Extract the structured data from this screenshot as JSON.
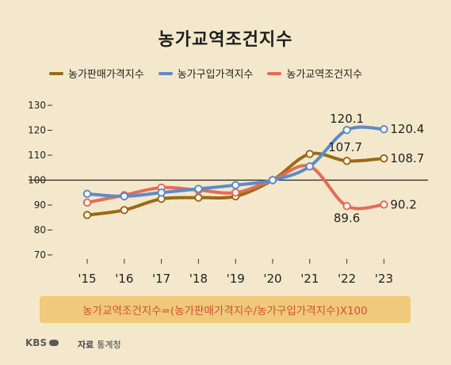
{
  "chart_data": {
    "type": "line",
    "title": "농가교역조건지수",
    "categories": [
      "'15",
      "'16",
      "'17",
      "'18",
      "'19",
      "'20",
      "'21",
      "'22",
      "'23"
    ],
    "ylim": [
      70,
      130
    ],
    "yticks": [
      70,
      80,
      90,
      100,
      110,
      120,
      130
    ],
    "ytick_labels": [
      "70",
      "80",
      "90",
      "100",
      "110",
      "120",
      "130"
    ],
    "reference_line": 100,
    "legend_position": "top",
    "series": [
      {
        "name": "농가판매가격지수",
        "color": "#9a6a16",
        "values": [
          86,
          88,
          92.5,
          93,
          93.5,
          100,
          110.5,
          107.7,
          108.7
        ]
      },
      {
        "name": "농가구입가격지수",
        "color": "#5b8cc9",
        "values": [
          94.5,
          93.5,
          95,
          96.5,
          98,
          100,
          105.5,
          120.1,
          120.4
        ]
      },
      {
        "name": "농가교역조건지수",
        "color": "#e36d57",
        "values": [
          91,
          94,
          97,
          96,
          95,
          100,
          105.5,
          89.6,
          90.2
        ]
      }
    ],
    "annotations": [
      {
        "text": "120.1",
        "series": 1,
        "index": 7
      },
      {
        "text": "120.4",
        "series": 1,
        "index": 8
      },
      {
        "text": "107.7",
        "series": 0,
        "index": 7
      },
      {
        "text": "108.7",
        "series": 0,
        "index": 8
      },
      {
        "text": "89.6",
        "series": 2,
        "index": 7
      },
      {
        "text": "90.2",
        "series": 2,
        "index": 8
      }
    ]
  },
  "formula": "농가교역조건지수=(농가판매가격지수/농가구입가격지수)X100",
  "footer": {
    "logo": "KBS",
    "source_label": "자료",
    "source": "통계청"
  }
}
